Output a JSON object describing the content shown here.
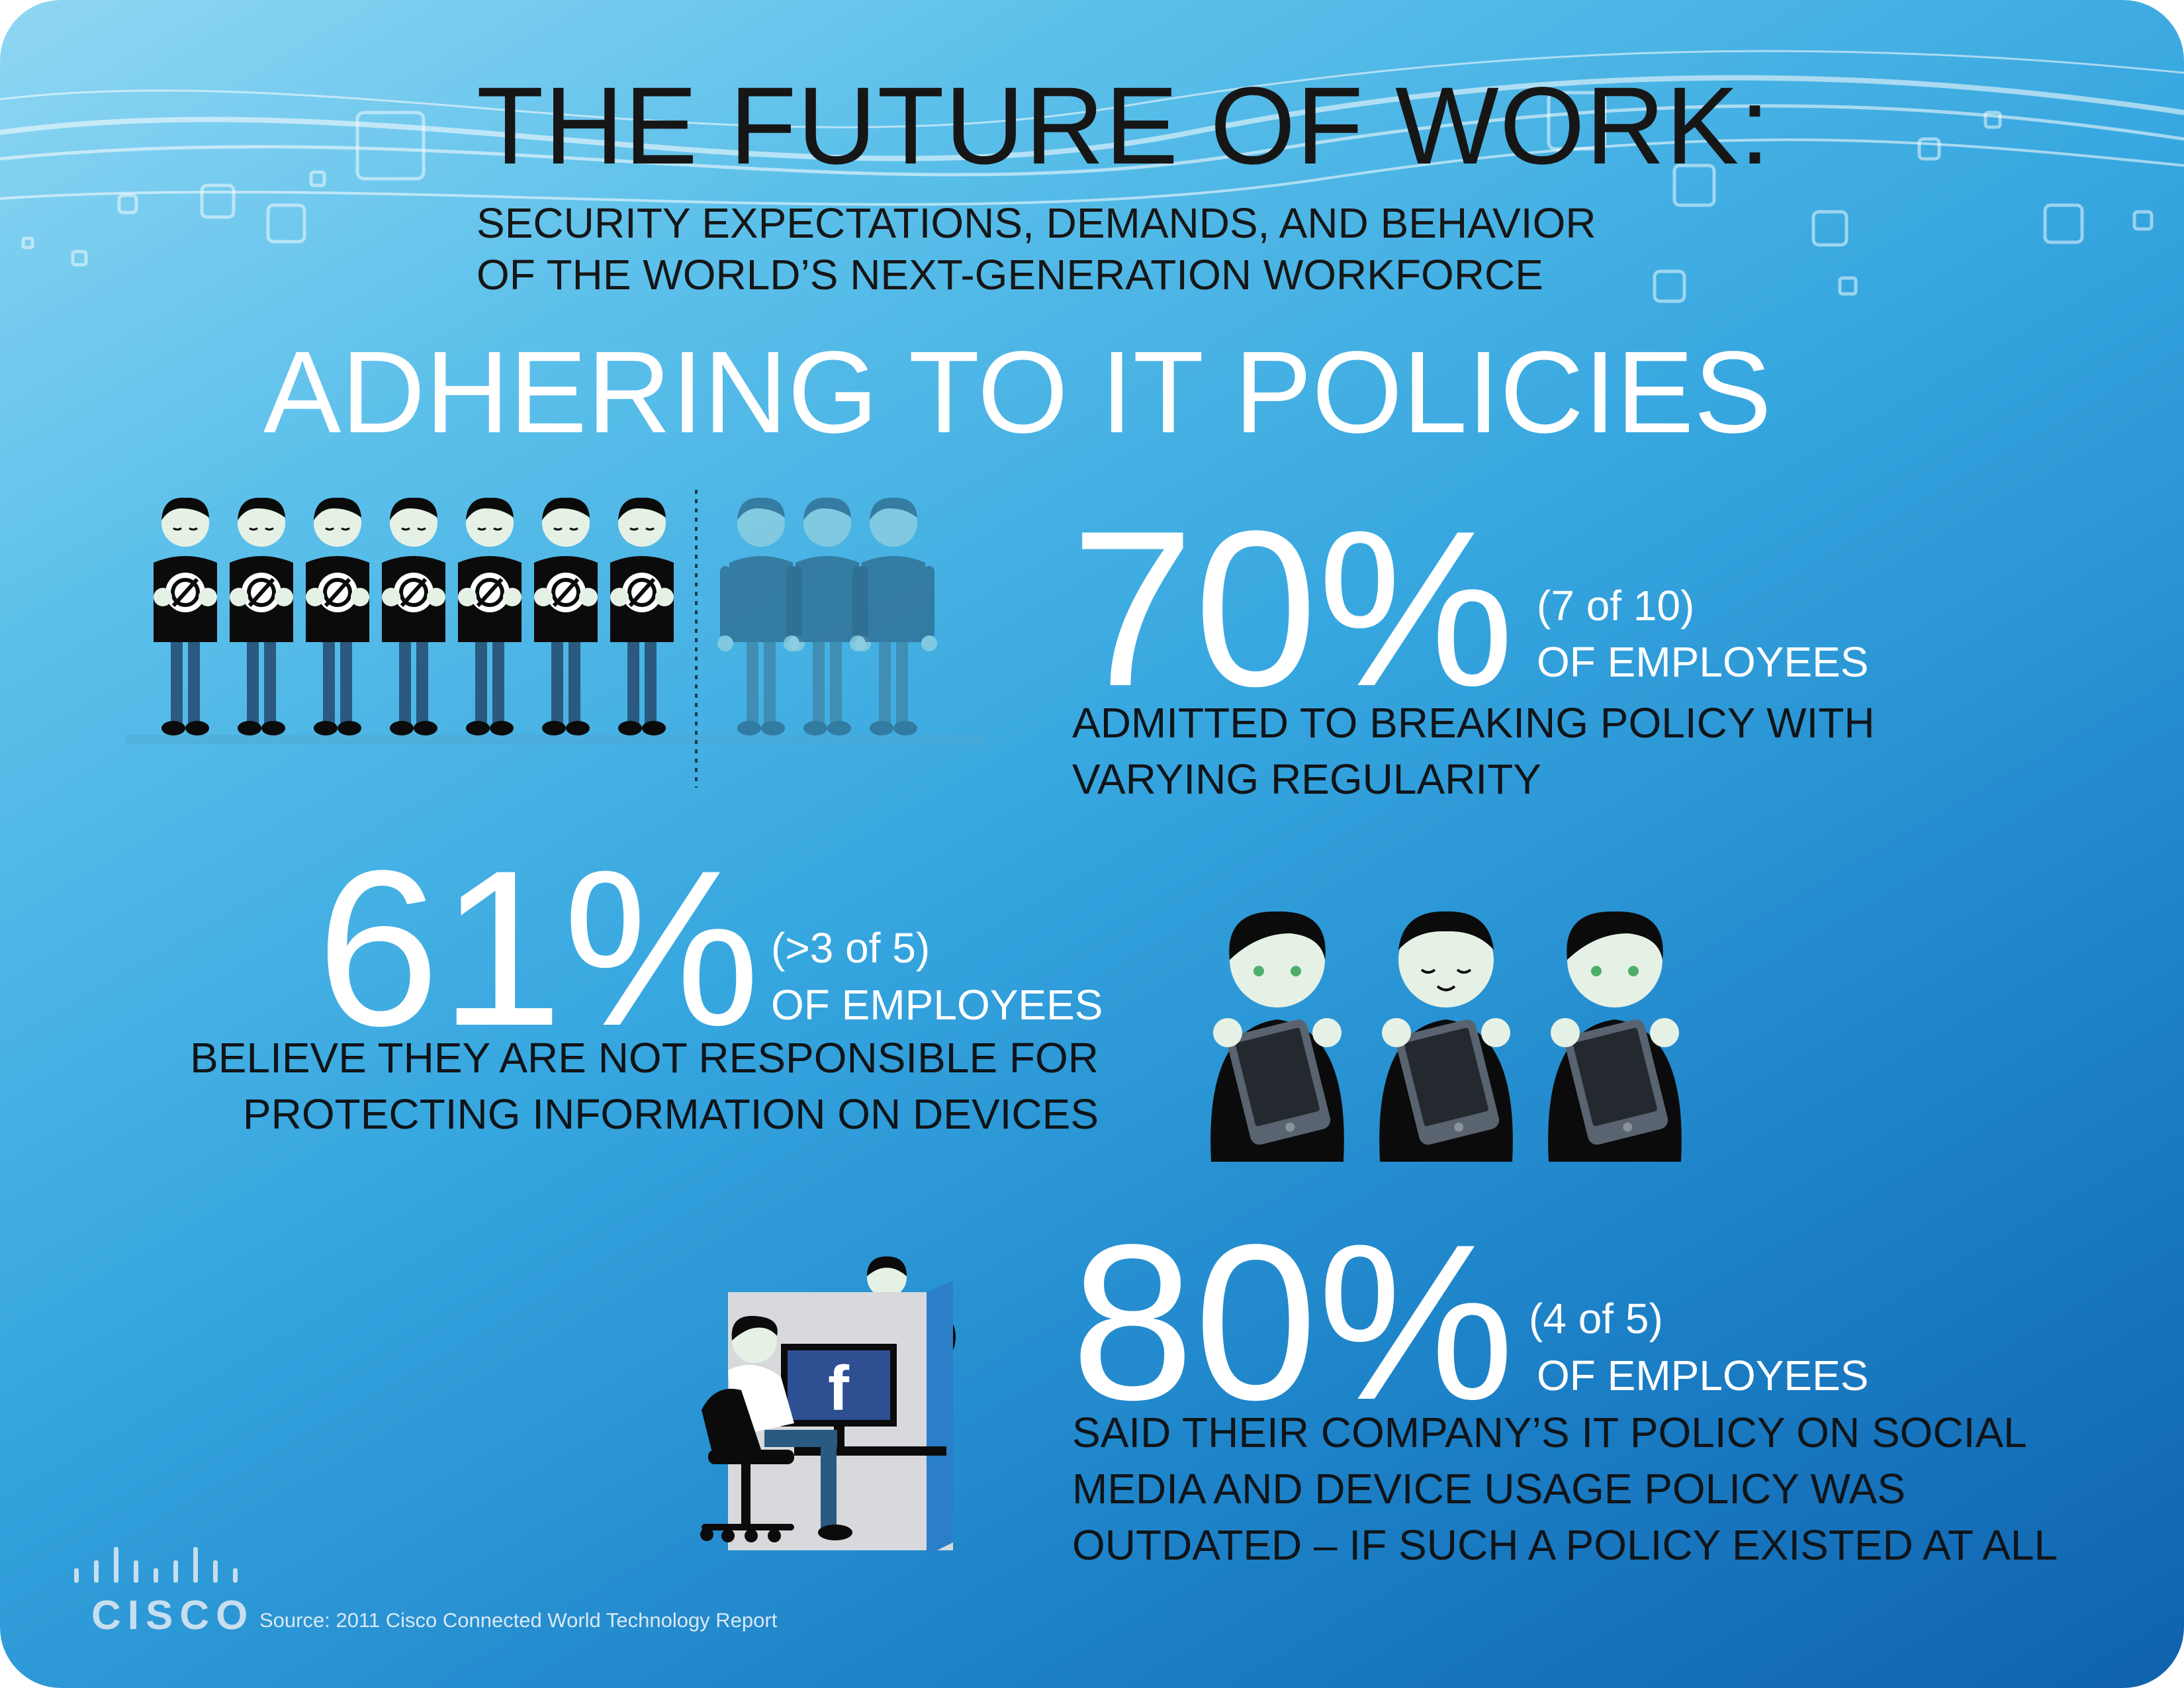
{
  "header": {
    "title": "THE FUTURE OF WORK:",
    "subtitle_line1": "SECURITY EXPECTATIONS, DEMANDS, AND BEHAVIOR",
    "subtitle_line2": "OF THE WORLD’S NEXT-GENERATION WORKFORCE"
  },
  "section_title": "ADHERING TO IT POLICIES",
  "stats": [
    {
      "percent": "70%",
      "fraction": "(7 of 10)",
      "label": "OF EMPLOYEES",
      "desc_line1": "ADMITTED TO BREAKING POLICY WITH",
      "desc_line2": "VARYING REGULARITY"
    },
    {
      "percent": "61%",
      "fraction": "(>3 of 5)",
      "label": "OF EMPLOYEES",
      "desc_line1": "BELIEVE THEY ARE NOT RESPONSIBLE FOR",
      "desc_line2": "PROTECTING INFORMATION ON DEVICES"
    },
    {
      "percent": "80%",
      "fraction": "(4 of 5)",
      "label": "OF EMPLOYEES",
      "desc_line1": "SAID THEIR COMPANY’S IT POLICY ON SOCIAL",
      "desc_line2": "MEDIA AND DEVICE USAGE POLICY WAS",
      "desc_line3": "OUTDATED – IF SUCH A POLICY EXISTED AT ALL"
    }
  ],
  "footer": {
    "logo": "CISCO",
    "source": "Source: 2011 Cisco Connected World Technology Report"
  },
  "illustrations": {
    "policy_breakers_count": 7,
    "compliant_count": 3,
    "device_holders_count": 3,
    "monitor_icon": "facebook-icon",
    "monitor_letter": "f"
  },
  "colors": {
    "background_top": "#8fd6f3",
    "background_bottom": "#0f62ad",
    "ink": "#161616",
    "white": "#ffffff",
    "figure_pants": "#2a5a80",
    "compliant_figure": "#3f87a8",
    "facebook_blue": "#2f4f93"
  }
}
